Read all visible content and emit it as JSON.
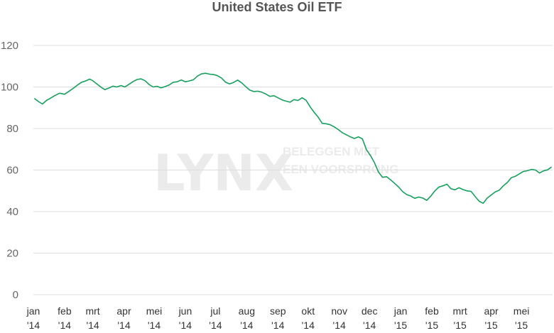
{
  "watermark": {
    "brand": "LYNX",
    "tagline_line1": "BELEGGEN MET",
    "tagline_line2": "EEN VOORSPRONG"
  },
  "chart_data": {
    "type": "line",
    "title": "United States Oil ETF",
    "xlabel": "",
    "ylabel": "",
    "ylim": [
      0,
      120
    ],
    "yticks": [
      0,
      20,
      40,
      60,
      80,
      100,
      120
    ],
    "grid": true,
    "x_tick_labels": [
      {
        "month": "jan",
        "year": "'14"
      },
      {
        "month": "feb",
        "year": "'14"
      },
      {
        "month": "mrt",
        "year": "'14"
      },
      {
        "month": "apr",
        "year": "'14"
      },
      {
        "month": "mei",
        "year": "'14"
      },
      {
        "month": "jun",
        "year": "'14"
      },
      {
        "month": "jul",
        "year": "'14"
      },
      {
        "month": "aug",
        "year": "'14"
      },
      {
        "month": "sep",
        "year": "'14"
      },
      {
        "month": "okt",
        "year": "'14"
      },
      {
        "month": "nov",
        "year": "'14"
      },
      {
        "month": "dec",
        "year": "'14"
      },
      {
        "month": "jan",
        "year": "'15"
      },
      {
        "month": "feb",
        "year": "'15"
      },
      {
        "month": "mrt",
        "year": "'15"
      },
      {
        "month": "apr",
        "year": "'15"
      },
      {
        "month": "mei",
        "year": "'15"
      }
    ],
    "series": [
      {
        "color": "#17a05d",
        "points": [
          [
            "2014-01-02",
            94.5
          ],
          [
            "2014-01-06",
            93.0
          ],
          [
            "2014-01-10",
            91.8
          ],
          [
            "2014-01-14",
            93.5
          ],
          [
            "2014-01-18",
            94.6
          ],
          [
            "2014-01-22",
            95.8
          ],
          [
            "2014-01-27",
            97.0
          ],
          [
            "2014-02-01",
            96.5
          ],
          [
            "2014-02-05",
            97.8
          ],
          [
            "2014-02-10",
            99.5
          ],
          [
            "2014-02-14",
            101.0
          ],
          [
            "2014-02-18",
            102.3
          ],
          [
            "2014-02-22",
            102.9
          ],
          [
            "2014-02-26",
            103.8
          ],
          [
            "2014-03-01",
            103.0
          ],
          [
            "2014-03-05",
            101.5
          ],
          [
            "2014-03-09",
            100.0
          ],
          [
            "2014-03-13",
            98.7
          ],
          [
            "2014-03-17",
            99.5
          ],
          [
            "2014-03-21",
            100.4
          ],
          [
            "2014-03-25",
            100.0
          ],
          [
            "2014-03-29",
            100.7
          ],
          [
            "2014-04-02",
            100.0
          ],
          [
            "2014-04-06",
            101.3
          ],
          [
            "2014-04-10",
            102.6
          ],
          [
            "2014-04-14",
            103.6
          ],
          [
            "2014-04-18",
            103.9
          ],
          [
            "2014-04-22",
            103.0
          ],
          [
            "2014-04-26",
            101.2
          ],
          [
            "2014-04-30",
            100.0
          ],
          [
            "2014-05-04",
            100.3
          ],
          [
            "2014-05-08",
            99.6
          ],
          [
            "2014-05-12",
            100.2
          ],
          [
            "2014-05-16",
            101.0
          ],
          [
            "2014-05-20",
            102.3
          ],
          [
            "2014-05-24",
            102.5
          ],
          [
            "2014-05-28",
            103.4
          ],
          [
            "2014-06-01",
            102.5
          ],
          [
            "2014-06-05",
            102.9
          ],
          [
            "2014-06-09",
            103.5
          ],
          [
            "2014-06-13",
            105.2
          ],
          [
            "2014-06-17",
            106.3
          ],
          [
            "2014-06-21",
            106.6
          ],
          [
            "2014-06-25",
            106.2
          ],
          [
            "2014-06-29",
            106.0
          ],
          [
            "2014-07-03",
            105.4
          ],
          [
            "2014-07-07",
            104.3
          ],
          [
            "2014-07-11",
            102.3
          ],
          [
            "2014-07-15",
            101.5
          ],
          [
            "2014-07-19",
            102.2
          ],
          [
            "2014-07-23",
            103.3
          ],
          [
            "2014-07-27",
            102.0
          ],
          [
            "2014-07-31",
            100.2
          ],
          [
            "2014-08-04",
            98.5
          ],
          [
            "2014-08-08",
            97.8
          ],
          [
            "2014-08-12",
            98.0
          ],
          [
            "2014-08-16",
            97.5
          ],
          [
            "2014-08-20",
            96.6
          ],
          [
            "2014-08-24",
            95.5
          ],
          [
            "2014-08-28",
            95.8
          ],
          [
            "2014-09-01",
            94.8
          ],
          [
            "2014-09-05",
            93.8
          ],
          [
            "2014-09-09",
            93.2
          ],
          [
            "2014-09-13",
            92.7
          ],
          [
            "2014-09-17",
            93.9
          ],
          [
            "2014-09-21",
            93.5
          ],
          [
            "2014-09-25",
            94.8
          ],
          [
            "2014-09-29",
            93.6
          ],
          [
            "2014-10-03",
            90.5
          ],
          [
            "2014-10-07",
            87.8
          ],
          [
            "2014-10-11",
            85.5
          ],
          [
            "2014-10-15",
            82.5
          ],
          [
            "2014-10-19",
            82.3
          ],
          [
            "2014-10-23",
            81.8
          ],
          [
            "2014-10-27",
            80.8
          ],
          [
            "2014-10-31",
            79.5
          ],
          [
            "2014-11-04",
            78.0
          ],
          [
            "2014-11-08",
            77.0
          ],
          [
            "2014-11-12",
            76.0
          ],
          [
            "2014-11-16",
            75.2
          ],
          [
            "2014-11-20",
            76.0
          ],
          [
            "2014-11-24",
            75.0
          ],
          [
            "2014-11-28",
            69.8
          ],
          [
            "2014-12-02",
            67.0
          ],
          [
            "2014-12-06",
            63.5
          ],
          [
            "2014-12-10",
            59.0
          ],
          [
            "2014-12-14",
            56.5
          ],
          [
            "2014-12-18",
            56.8
          ],
          [
            "2014-12-22",
            55.3
          ],
          [
            "2014-12-26",
            53.6
          ],
          [
            "2014-12-30",
            51.8
          ],
          [
            "2015-01-03",
            49.6
          ],
          [
            "2015-01-07",
            48.2
          ],
          [
            "2015-01-11",
            47.5
          ],
          [
            "2015-01-15",
            46.4
          ],
          [
            "2015-01-19",
            47.0
          ],
          [
            "2015-01-23",
            46.5
          ],
          [
            "2015-01-27",
            45.4
          ],
          [
            "2015-01-31",
            47.5
          ],
          [
            "2015-02-04",
            50.0
          ],
          [
            "2015-02-08",
            51.8
          ],
          [
            "2015-02-12",
            52.4
          ],
          [
            "2015-02-16",
            53.2
          ],
          [
            "2015-02-20",
            51.0
          ],
          [
            "2015-02-24",
            50.5
          ],
          [
            "2015-02-28",
            51.5
          ],
          [
            "2015-03-04",
            50.6
          ],
          [
            "2015-03-08",
            50.0
          ],
          [
            "2015-03-12",
            49.7
          ],
          [
            "2015-03-16",
            47.3
          ],
          [
            "2015-03-20",
            45.0
          ],
          [
            "2015-03-24",
            44.0
          ],
          [
            "2015-03-28",
            46.5
          ],
          [
            "2015-04-01",
            48.0
          ],
          [
            "2015-04-05",
            49.5
          ],
          [
            "2015-04-09",
            50.3
          ],
          [
            "2015-04-13",
            52.4
          ],
          [
            "2015-04-17",
            54.0
          ],
          [
            "2015-04-21",
            56.3
          ],
          [
            "2015-04-25",
            57.0
          ],
          [
            "2015-04-29",
            58.2
          ],
          [
            "2015-05-03",
            59.3
          ],
          [
            "2015-05-07",
            59.7
          ],
          [
            "2015-05-11",
            60.3
          ],
          [
            "2015-05-15",
            60.0
          ],
          [
            "2015-05-19",
            58.6
          ],
          [
            "2015-05-23",
            59.6
          ],
          [
            "2015-05-27",
            60.1
          ],
          [
            "2015-05-31",
            61.5
          ]
        ]
      }
    ]
  }
}
